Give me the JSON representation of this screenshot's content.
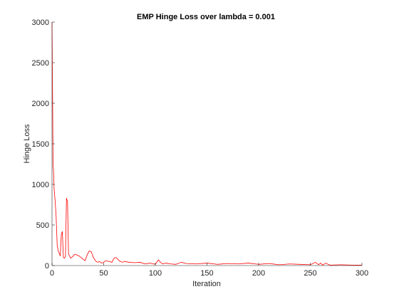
{
  "chart_data": {
    "type": "line",
    "title": "EMP Hinge Loss over lambda = 0.001",
    "xlabel": "Iteration",
    "ylabel": "Hinge Loss",
    "xlim": [
      0,
      300
    ],
    "ylim": [
      0,
      3000
    ],
    "xticks": [
      0,
      50,
      100,
      150,
      200,
      250,
      300
    ],
    "yticks": [
      0,
      500,
      1000,
      1500,
      2000,
      2500,
      3000
    ],
    "grid": false,
    "series": [
      {
        "color": "#ff0000",
        "x": [
          0,
          0.5,
          1,
          1.5,
          2,
          3,
          4,
          5,
          6,
          7,
          8,
          9,
          10,
          11,
          12,
          13,
          14,
          15,
          16,
          17,
          18,
          20,
          22,
          24,
          26,
          28,
          30,
          32,
          34,
          36,
          38,
          40,
          42,
          44,
          46,
          48,
          50,
          52,
          55,
          58,
          60,
          62,
          65,
          68,
          70,
          75,
          80,
          85,
          90,
          95,
          100,
          103,
          105,
          107,
          110,
          115,
          120,
          125,
          130,
          140,
          150,
          160,
          170,
          180,
          190,
          200,
          210,
          220,
          230,
          240,
          250,
          255,
          258,
          260,
          262,
          265,
          268,
          270,
          280,
          290,
          300
        ],
        "y": [
          3000,
          2200,
          1250,
          1150,
          950,
          800,
          600,
          250,
          180,
          150,
          120,
          380,
          420,
          100,
          90,
          110,
          830,
          790,
          140,
          120,
          90,
          110,
          140,
          130,
          120,
          100,
          80,
          60,
          130,
          180,
          170,
          100,
          60,
          40,
          50,
          30,
          40,
          60,
          50,
          40,
          90,
          100,
          60,
          40,
          50,
          40,
          35,
          40,
          20,
          30,
          15,
          70,
          40,
          20,
          30,
          20,
          15,
          40,
          25,
          20,
          30,
          15,
          25,
          20,
          30,
          15,
          25,
          10,
          20,
          15,
          10,
          40,
          10,
          30,
          5,
          30,
          10,
          5,
          10,
          5,
          5
        ]
      }
    ]
  }
}
